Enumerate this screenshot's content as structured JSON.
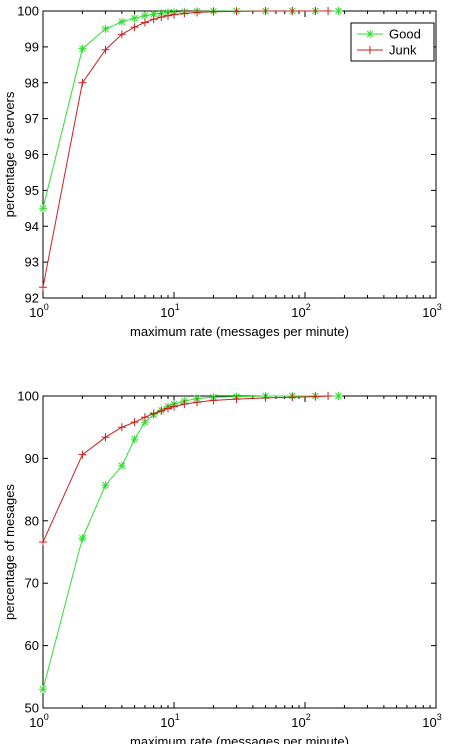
{
  "colors": {
    "good": "#33dd33",
    "junk": "#cc1f1f",
    "axis": "#000000"
  },
  "chart_data": [
    {
      "type": "line",
      "xscale": "log",
      "xlim": [
        1,
        1000
      ],
      "ylim": [
        92,
        100
      ],
      "xticks": [
        1,
        10,
        100,
        1000
      ],
      "xtick_labels": [
        {
          "base": "10",
          "exp": "0"
        },
        {
          "base": "10",
          "exp": "1"
        },
        {
          "base": "10",
          "exp": "2"
        },
        {
          "base": "10",
          "exp": "3"
        }
      ],
      "yticks": [
        92,
        93,
        94,
        95,
        96,
        97,
        98,
        99,
        100
      ],
      "xlabel": "maximum rate (messages per minute)",
      "ylabel": "percentage of servers",
      "legend": {
        "position": "top-right",
        "entries": [
          "Good",
          "Junk"
        ]
      },
      "series": [
        {
          "name": "Good",
          "marker": "star",
          "color_key": "good",
          "x": [
            1,
            2,
            3,
            4,
            5,
            6,
            7,
            8,
            9,
            10,
            12,
            15,
            20,
            30,
            50,
            80,
            120,
            180
          ],
          "y": [
            94.5,
            98.95,
            99.5,
            99.7,
            99.8,
            99.87,
            99.91,
            99.94,
            99.96,
            99.97,
            99.98,
            99.99,
            99.995,
            100,
            100,
            100,
            100,
            100
          ]
        },
        {
          "name": "Junk",
          "marker": "plus",
          "color_key": "junk",
          "x": [
            1,
            2,
            3,
            4,
            5,
            6,
            7,
            8,
            9,
            10,
            12,
            15,
            20,
            30,
            50,
            80,
            120,
            150
          ],
          "y": [
            92.3,
            98.0,
            98.92,
            99.35,
            99.55,
            99.68,
            99.77,
            99.83,
            99.87,
            99.9,
            99.93,
            99.96,
            99.98,
            99.99,
            100,
            100,
            100,
            100
          ]
        }
      ]
    },
    {
      "type": "line",
      "xscale": "log",
      "xlim": [
        1,
        1000
      ],
      "ylim": [
        50,
        100
      ],
      "xticks": [
        1,
        10,
        100,
        1000
      ],
      "xtick_labels": [
        {
          "base": "10",
          "exp": "0"
        },
        {
          "base": "10",
          "exp": "1"
        },
        {
          "base": "10",
          "exp": "2"
        },
        {
          "base": "10",
          "exp": "3"
        }
      ],
      "yticks": [
        50,
        60,
        70,
        80,
        90,
        100
      ],
      "xlabel": "maximum rate (messages per minute)",
      "ylabel": "percentage of mesages",
      "series": [
        {
          "name": "Good",
          "marker": "star",
          "color_key": "good",
          "x": [
            1,
            2,
            3,
            4,
            5,
            6,
            7,
            8,
            9,
            10,
            12,
            15,
            20,
            30,
            50,
            80,
            120,
            180
          ],
          "y": [
            53.0,
            77.2,
            85.7,
            88.8,
            93.1,
            95.8,
            97.0,
            97.7,
            98.3,
            98.7,
            99.2,
            99.6,
            99.8,
            99.9,
            100,
            100,
            100,
            100
          ]
        },
        {
          "name": "Junk",
          "marker": "plus",
          "color_key": "junk",
          "x": [
            1,
            2,
            3,
            4,
            5,
            6,
            7,
            8,
            9,
            10,
            12,
            15,
            20,
            30,
            50,
            80,
            120,
            150
          ],
          "y": [
            76.6,
            90.6,
            93.4,
            95.0,
            95.8,
            96.6,
            97.2,
            97.6,
            98.0,
            98.3,
            98.7,
            99.0,
            99.3,
            99.5,
            99.7,
            99.8,
            99.9,
            100
          ]
        }
      ]
    }
  ]
}
